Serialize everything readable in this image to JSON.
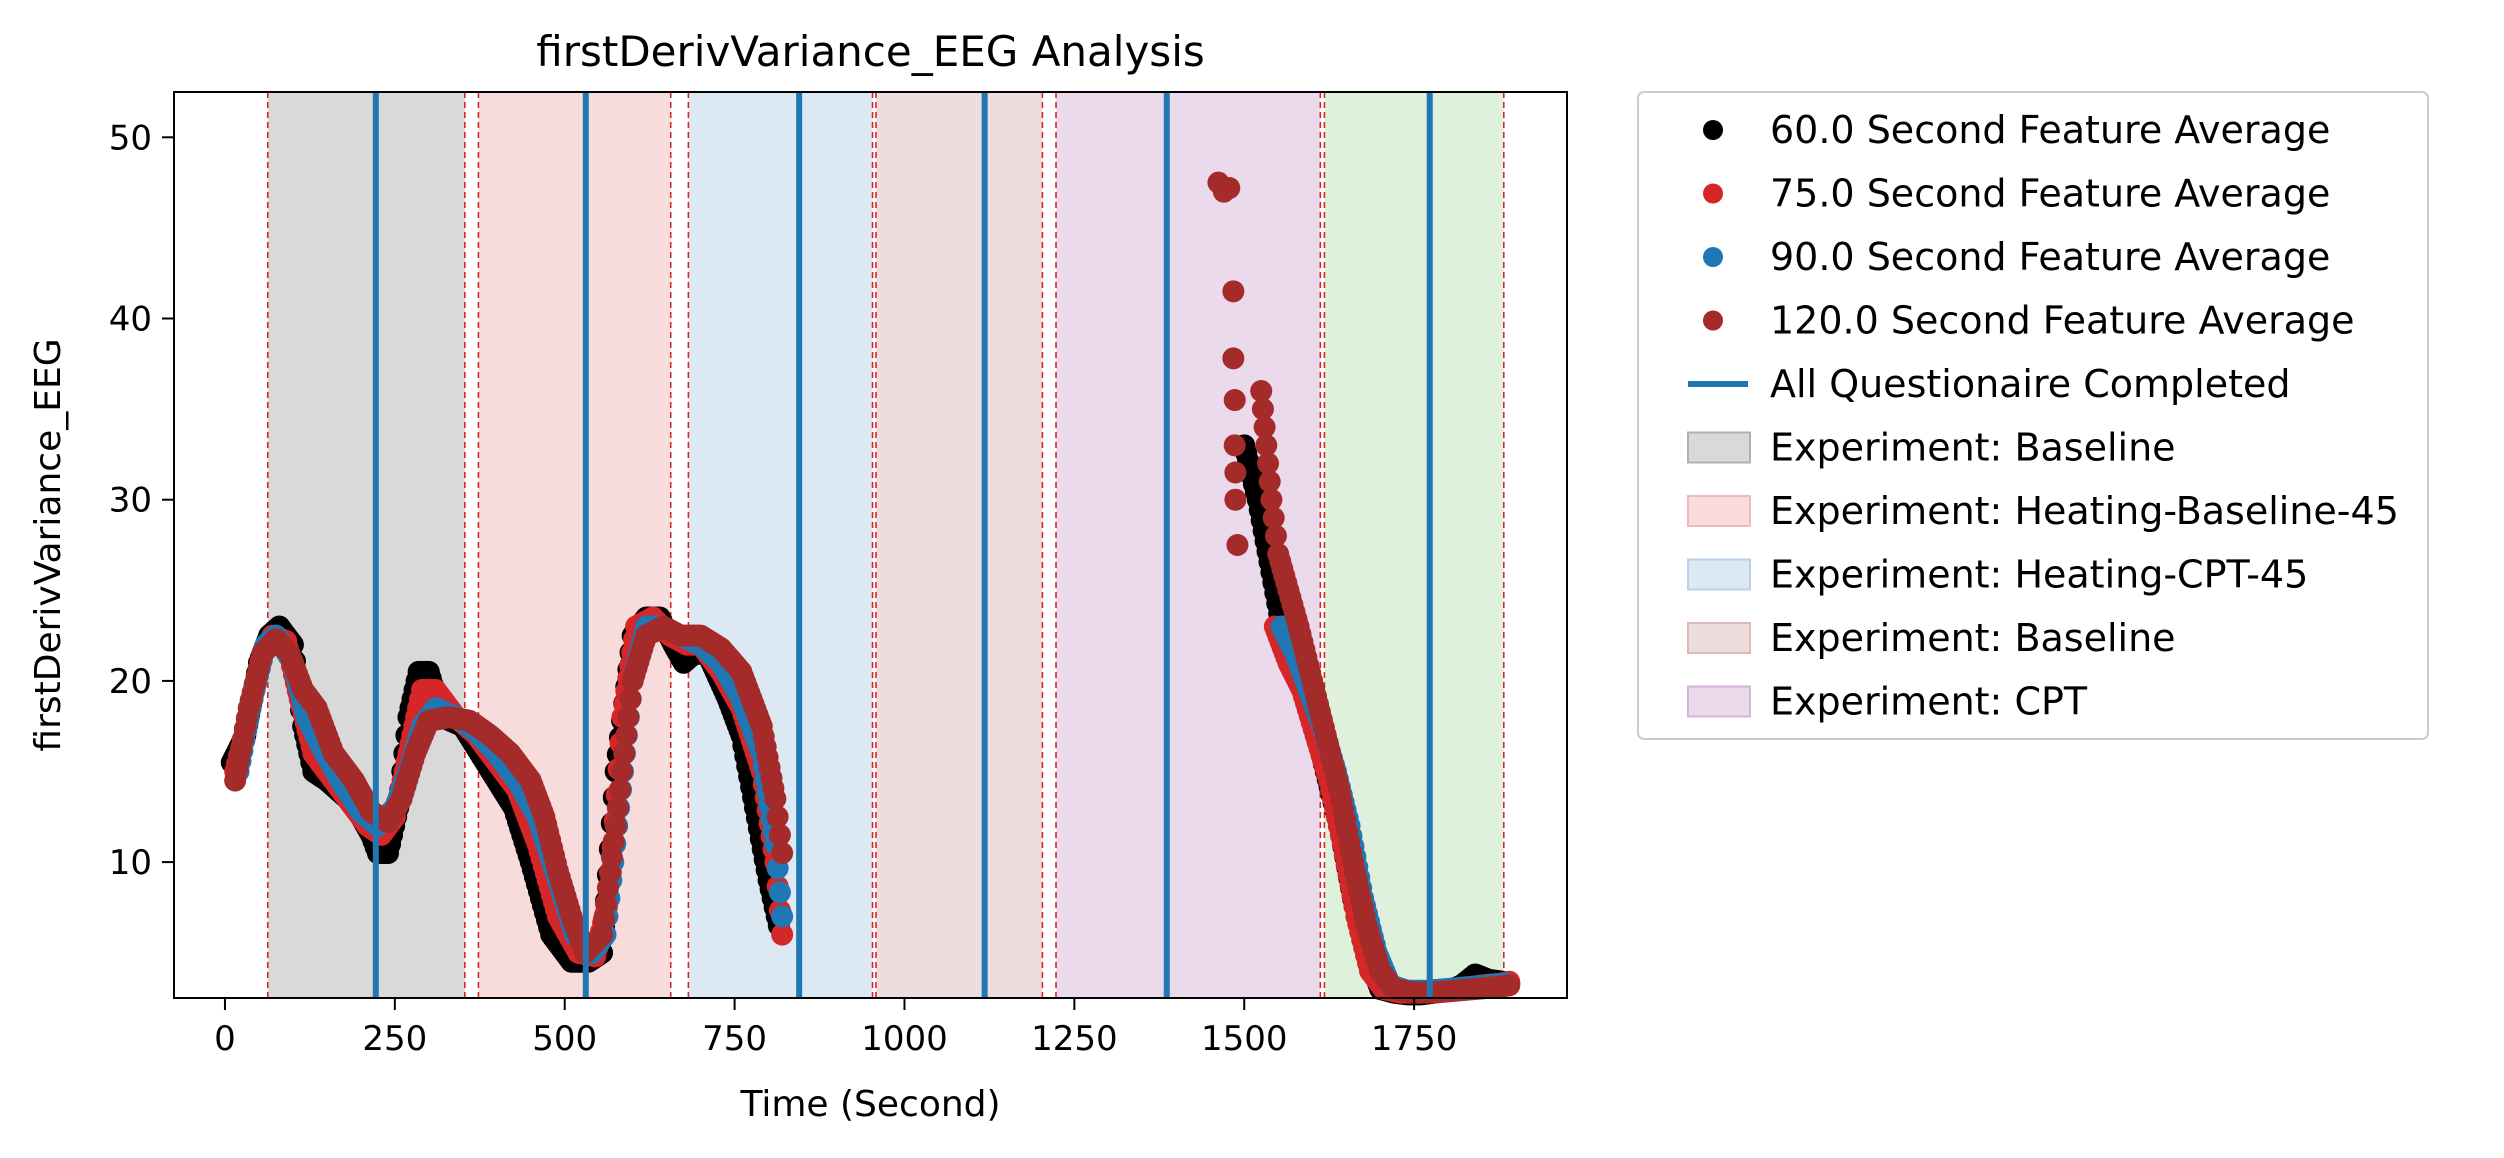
{
  "chart_data": {
    "type": "scatter",
    "title": "firstDerivVariance_EEG Analysis",
    "xlabel": "Time (Second)",
    "ylabel": "firstDerivVariance_EEG",
    "xlim": [
      -75,
      1975
    ],
    "ylim": [
      2.5,
      52.5
    ],
    "xticks": [
      0,
      250,
      500,
      750,
      1000,
      1250,
      1500,
      1750
    ],
    "yticks": [
      10,
      20,
      30,
      40,
      50
    ],
    "grid": false,
    "legend_position": "outside-right",
    "phases": [
      {
        "label": "Experiment: Baseline",
        "start": 63,
        "end": 353,
        "color": "#d9d9d9",
        "border": "#b0b0b0"
      },
      {
        "label": "Experiment: Heating-Baseline-45",
        "start": 373,
        "end": 656,
        "color": "#f8dcdc",
        "border": "#f0b8b8"
      },
      {
        "label": "Experiment: Heating-CPT-45",
        "start": 682,
        "end": 953,
        "color": "#dce8f2",
        "border": "#b9d2e8"
      },
      {
        "label": "Experiment: Baseline",
        "start": 958,
        "end": 1203,
        "color": "#efdcdc",
        "border": "#dfb9b9"
      },
      {
        "label": "Experiment: CPT",
        "start": 1223,
        "end": 1612,
        "color": "#ebd9ec",
        "border": "#d6b3d9"
      },
      {
        "label": "",
        "start": 1618,
        "end": 1882,
        "color": "#dff0dd",
        "border": "#bfe0bb"
      }
    ],
    "phase_boundaries": [
      63,
      353,
      373,
      656,
      682,
      953,
      958,
      1203,
      1223,
      1612,
      1618,
      1882
    ],
    "questionnaire_completed": [
      222,
      531,
      845,
      1118,
      1386,
      1773
    ],
    "questionnaire_label": "All Questionaire Completed",
    "questionnaire_color": "#1f77b4",
    "series": [
      {
        "name": "60.0 Second Feature Average",
        "color": "#000000",
        "segments": [
          [
            [
              10,
              15.5
            ],
            [
              30,
              17
            ],
            [
              50,
              21
            ],
            [
              65,
              22.5
            ],
            [
              80,
              23
            ],
            [
              100,
              22
            ],
            [
              115,
              17.5
            ],
            [
              130,
              15
            ],
            [
              150,
              14.5
            ],
            [
              180,
              13.5
            ],
            [
              200,
              12.5
            ],
            [
              215,
              11.5
            ],
            [
              225,
              10.5
            ],
            [
              240,
              10.5
            ],
            [
              255,
              13
            ],
            [
              270,
              18
            ],
            [
              285,
              20.5
            ],
            [
              300,
              20.5
            ],
            [
              320,
              18
            ],
            [
              350,
              17.5
            ],
            [
              375,
              16
            ],
            [
              400,
              14.5
            ],
            [
              425,
              13
            ],
            [
              450,
              10
            ],
            [
              480,
              6
            ],
            [
              510,
              4.5
            ],
            [
              535,
              4.5
            ],
            [
              555,
              5
            ],
            [
              575,
              15
            ],
            [
              600,
              22.5
            ],
            [
              620,
              23.5
            ],
            [
              640,
              23.5
            ],
            [
              660,
              22
            ],
            [
              675,
              21
            ],
            [
              690,
              21.5
            ],
            [
              710,
              21.5
            ],
            [
              740,
              19
            ],
            [
              760,
              17
            ],
            [
              780,
              13
            ],
            [
              800,
              9
            ],
            [
              815,
              6.5
            ]
          ],
          [
            [
              1500,
              33
            ],
            [
              1520,
              30
            ],
            [
              1540,
              26
            ],
            [
              1560,
              22
            ],
            [
              1580,
              20.5
            ],
            [
              1600,
              18
            ],
            [
              1620,
              15
            ],
            [
              1640,
              12
            ],
            [
              1660,
              8
            ],
            [
              1680,
              5
            ],
            [
              1700,
              3
            ],
            [
              1720,
              2.8
            ],
            [
              1740,
              2.7
            ],
            [
              1760,
              2.7
            ],
            [
              1780,
              2.8
            ],
            [
              1800,
              2.9
            ],
            [
              1820,
              3.2
            ],
            [
              1840,
              3.8
            ],
            [
              1860,
              3.5
            ],
            [
              1880,
              3.4
            ],
            [
              1890,
              3.3
            ]
          ]
        ]
      },
      {
        "name": "75.0 Second Feature Average",
        "color": "#d62728",
        "segments": [
          [
            [
              15,
              15
            ],
            [
              35,
              18
            ],
            [
              55,
              21.5
            ],
            [
              70,
              22.5
            ],
            [
              90,
              22.2
            ],
            [
              110,
              19
            ],
            [
              130,
              16
            ],
            [
              150,
              15
            ],
            [
              180,
              13.5
            ],
            [
              210,
              12
            ],
            [
              230,
              11.5
            ],
            [
              250,
              12.5
            ],
            [
              270,
              16
            ],
            [
              290,
              19.5
            ],
            [
              310,
              19.5
            ],
            [
              340,
              18
            ],
            [
              370,
              17
            ],
            [
              400,
              15.5
            ],
            [
              430,
              14
            ],
            [
              460,
              11
            ],
            [
              490,
              7
            ],
            [
              520,
              5
            ],
            [
              545,
              4.8
            ],
            [
              565,
              8
            ],
            [
              585,
              18
            ],
            [
              605,
              23
            ],
            [
              630,
              23.5
            ],
            [
              655,
              22.5
            ],
            [
              680,
              22
            ],
            [
              700,
              22
            ],
            [
              730,
              20.5
            ],
            [
              760,
              18.5
            ],
            [
              790,
              15
            ],
            [
              810,
              10
            ],
            [
              820,
              6
            ]
          ],
          [
            [
              1545,
              23
            ],
            [
              1565,
              21
            ],
            [
              1585,
              19.5
            ],
            [
              1605,
              17
            ],
            [
              1625,
              14.5
            ],
            [
              1645,
              11
            ],
            [
              1665,
              7
            ],
            [
              1685,
              4
            ],
            [
              1705,
              3
            ],
            [
              1730,
              2.8
            ],
            [
              1760,
              2.8
            ],
            [
              1790,
              2.9
            ],
            [
              1820,
              3
            ],
            [
              1850,
              3.2
            ],
            [
              1880,
              3.3
            ],
            [
              1890,
              3.4
            ]
          ]
        ]
      },
      {
        "name": "90.0 Second Feature Average",
        "color": "#1f77b4",
        "segments": [
          [
            [
              20,
              15
            ],
            [
              40,
              19
            ],
            [
              60,
              22
            ],
            [
              75,
              22.5
            ],
            [
              100,
              21
            ],
            [
              120,
              18
            ],
            [
              140,
              16.5
            ],
            [
              170,
              14.5
            ],
            [
              200,
              12.8
            ],
            [
              225,
              12
            ],
            [
              250,
              13
            ],
            [
              270,
              15
            ],
            [
              290,
              17.5
            ],
            [
              310,
              18.5
            ],
            [
              340,
              18
            ],
            [
              370,
              17.2
            ],
            [
              400,
              16
            ],
            [
              430,
              14.5
            ],
            [
              460,
              12.5
            ],
            [
              490,
              9
            ],
            [
              515,
              6
            ],
            [
              540,
              5
            ],
            [
              560,
              6
            ],
            [
              580,
              13
            ],
            [
              600,
              20
            ],
            [
              620,
              23
            ],
            [
              645,
              23
            ],
            [
              670,
              22.5
            ],
            [
              700,
              22
            ],
            [
              730,
              21
            ],
            [
              760,
              19
            ],
            [
              790,
              16
            ],
            [
              810,
              11
            ],
            [
              820,
              7
            ]
          ],
          [
            [
              1555,
              23
            ],
            [
              1575,
              21.5
            ],
            [
              1595,
              19.5
            ],
            [
              1615,
              17.5
            ],
            [
              1635,
              15
            ],
            [
              1655,
              12
            ],
            [
              1675,
              8
            ],
            [
              1695,
              5
            ],
            [
              1715,
              3.2
            ],
            [
              1740,
              2.9
            ],
            [
              1770,
              2.9
            ],
            [
              1800,
              3
            ],
            [
              1830,
              3.1
            ],
            [
              1860,
              3.2
            ],
            [
              1885,
              3.3
            ]
          ]
        ]
      },
      {
        "name": "120.0 Second Feature Average",
        "color": "#a52a2a",
        "segments": [
          [
            [
              15,
              14.5
            ],
            [
              35,
              18.5
            ],
            [
              55,
              21.5
            ],
            [
              75,
              22.3
            ],
            [
              95,
              21.5
            ],
            [
              115,
              19.5
            ],
            [
              135,
              18.5
            ],
            [
              160,
              16
            ],
            [
              190,
              14.5
            ],
            [
              215,
              12.8
            ],
            [
              240,
              12.2
            ],
            [
              260,
              13.5
            ],
            [
              280,
              16
            ],
            [
              300,
              17.8
            ],
            [
              330,
              18
            ],
            [
              360,
              17.8
            ],
            [
              390,
              17
            ],
            [
              420,
              16
            ],
            [
              450,
              14.5
            ],
            [
              470,
              12.5
            ],
            [
              490,
              9.5
            ],
            [
              510,
              7
            ],
            [
              530,
              5
            ],
            [
              555,
              6
            ],
            [
              575,
              12
            ],
            [
              600,
              20
            ],
            [
              620,
              22.5
            ],
            [
              645,
              23
            ],
            [
              670,
              22.5
            ],
            [
              700,
              22.5
            ],
            [
              730,
              21.8
            ],
            [
              760,
              20.5
            ],
            [
              790,
              17.5
            ],
            [
              810,
              13.5
            ],
            [
              820,
              10.5
            ]
          ],
          [
            [
              1525,
              36
            ],
            [
              1530,
              34
            ],
            [
              1535,
              32
            ],
            [
              1540,
              30
            ],
            [
              1550,
              27
            ],
            [
              1565,
              25
            ],
            [
              1580,
              23
            ],
            [
              1600,
              20
            ],
            [
              1620,
              17
            ],
            [
              1640,
              14
            ],
            [
              1660,
              10
            ],
            [
              1680,
              6.5
            ],
            [
              1700,
              4
            ],
            [
              1720,
              3
            ],
            [
              1750,
              2.8
            ],
            [
              1780,
              2.8
            ],
            [
              1810,
              2.9
            ],
            [
              1840,
              3
            ],
            [
              1870,
              3.1
            ],
            [
              1890,
              3.2
            ]
          ]
        ]
      }
    ],
    "outlier_points": {
      "series": "120.0 Second Feature Average",
      "points": [
        [
          1462,
          47.5
        ],
        [
          1470,
          47
        ],
        [
          1478,
          47.2
        ],
        [
          1484,
          41.5
        ],
        [
          1484,
          37.8
        ],
        [
          1486,
          35.5
        ],
        [
          1486,
          33
        ],
        [
          1487,
          31.5
        ],
        [
          1487,
          30
        ],
        [
          1490,
          27.5
        ]
      ]
    }
  },
  "legend": {
    "items": [
      {
        "label": "60.0 Second Feature Average",
        "kind": "marker",
        "color": "#000000"
      },
      {
        "label": "75.0 Second Feature Average",
        "kind": "marker",
        "color": "#d62728"
      },
      {
        "label": "90.0 Second Feature Average",
        "kind": "marker",
        "color": "#1f77b4"
      },
      {
        "label": "120.0 Second Feature Average",
        "kind": "marker",
        "color": "#a52a2a"
      },
      {
        "label": "All Questionaire Completed",
        "kind": "line",
        "color": "#1f77b4"
      },
      {
        "label": "Experiment: Baseline",
        "kind": "patch",
        "color": "#d9d9d9",
        "border": "#b0b0b0"
      },
      {
        "label": "Experiment: Heating-Baseline-45",
        "kind": "patch",
        "color": "#f8dcdc",
        "border": "#f0b8b8"
      },
      {
        "label": "Experiment: Heating-CPT-45",
        "kind": "patch",
        "color": "#dce8f2",
        "border": "#b9d2e8"
      },
      {
        "label": "Experiment: Baseline",
        "kind": "patch",
        "color": "#efdcdc",
        "border": "#dfb9b9"
      },
      {
        "label": "Experiment: CPT",
        "kind": "patch",
        "color": "#ebd9ec",
        "border": "#d6b3d9"
      }
    ]
  }
}
